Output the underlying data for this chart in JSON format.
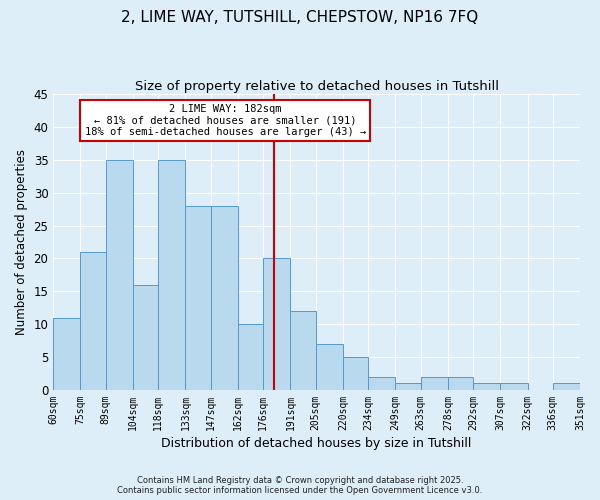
{
  "title": "2, LIME WAY, TUTSHILL, CHEPSTOW, NP16 7FQ",
  "subtitle": "Size of property relative to detached houses in Tutshill",
  "xlabel": "Distribution of detached houses by size in Tutshill",
  "ylabel": "Number of detached properties",
  "bins": [
    60,
    75,
    89,
    104,
    118,
    133,
    147,
    162,
    176,
    191,
    205,
    220,
    234,
    249,
    263,
    278,
    292,
    307,
    322,
    336,
    351
  ],
  "counts": [
    11,
    21,
    35,
    16,
    35,
    28,
    28,
    10,
    20,
    12,
    7,
    5,
    2,
    1,
    2,
    2,
    1,
    1,
    0,
    1
  ],
  "bar_color": "#b8d9ee",
  "bar_edge_color": "#5599cc",
  "vline_x": 182,
  "vline_color": "#cc0000",
  "ylim": [
    0,
    45
  ],
  "yticks": [
    0,
    5,
    10,
    15,
    20,
    25,
    30,
    35,
    40,
    45
  ],
  "annotation_title": "2 LIME WAY: 182sqm",
  "annotation_line1": "← 81% of detached houses are smaller (191)",
  "annotation_line2": "18% of semi-detached houses are larger (43) →",
  "annotation_box_color": "#ffffff",
  "annotation_box_edge": "#cc0000",
  "bg_color": "#ddeef8",
  "footer1": "Contains HM Land Registry data © Crown copyright and database right 2025.",
  "footer2": "Contains public sector information licensed under the Open Government Licence v3.0.",
  "grid_color": "#ffffff",
  "title_fontsize": 11,
  "subtitle_fontsize": 9.5
}
